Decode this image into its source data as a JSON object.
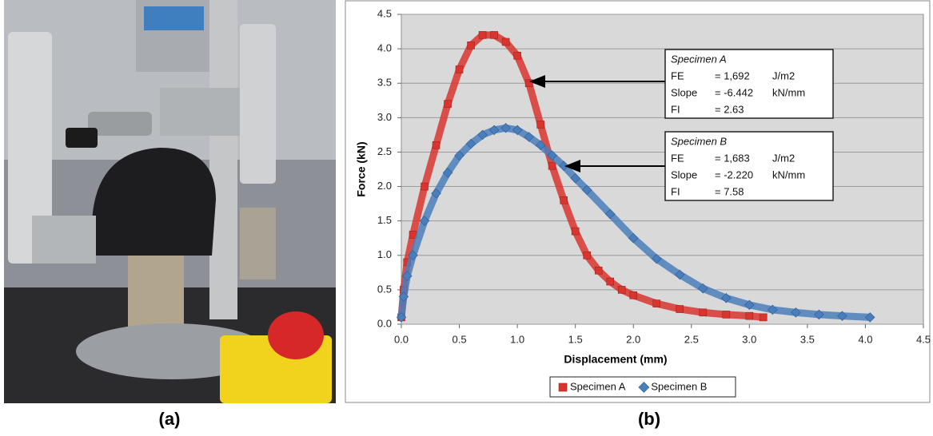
{
  "panel_labels": [
    "(a)",
    "(b)"
  ],
  "chart_data": {
    "type": "scatter",
    "x_label": "Displacement (mm)",
    "y_label": "Force (kN)",
    "xlim": [
      0,
      4.5
    ],
    "ylim": [
      0,
      4.5
    ],
    "xticks": [
      {
        "value": 0,
        "label": "0.0"
      },
      0.5,
      {
        "value": 1,
        "label": "1.0"
      },
      1.5,
      {
        "value": 2,
        "label": "2.0"
      },
      2.5,
      {
        "value": 3,
        "label": "3.0"
      },
      3.5,
      {
        "value": 4,
        "label": "4.0"
      },
      4.5
    ],
    "yticks": [
      {
        "value": 0,
        "label": "0.0"
      },
      0.5,
      {
        "value": 1,
        "label": "1.0"
      },
      1.5,
      {
        "value": 2,
        "label": "2.0"
      },
      2.5,
      {
        "value": 3,
        "label": "3.0"
      },
      3.5,
      {
        "value": 4,
        "label": "4.0"
      },
      4.5
    ],
    "grid": true,
    "legend": "bottom",
    "series": [
      {
        "name": "Specimen A",
        "color": "#d8352f",
        "marker": "square",
        "x": [
          0,
          0.02,
          0.05,
          0.1,
          0.2,
          0.3,
          0.4,
          0.5,
          0.6,
          0.7,
          0.8,
          0.9,
          1.0,
          1.1,
          1.2,
          1.3,
          1.4,
          1.5,
          1.6,
          1.7,
          1.8,
          1.9,
          2.0,
          2.2,
          2.4,
          2.6,
          2.8,
          3.0,
          3.12
        ],
        "values": [
          0.1,
          0.5,
          0.9,
          1.3,
          2.0,
          2.6,
          3.2,
          3.7,
          4.05,
          4.2,
          4.2,
          4.1,
          3.9,
          3.5,
          2.9,
          2.3,
          1.8,
          1.35,
          1.0,
          0.78,
          0.62,
          0.5,
          0.42,
          0.3,
          0.22,
          0.17,
          0.14,
          0.12,
          0.1
        ]
      },
      {
        "name": "Specimen B",
        "color": "#4a7ebb",
        "marker": "diamond",
        "x": [
          0,
          0.02,
          0.05,
          0.1,
          0.2,
          0.3,
          0.4,
          0.5,
          0.6,
          0.7,
          0.8,
          0.9,
          1.0,
          1.1,
          1.2,
          1.3,
          1.4,
          1.5,
          1.6,
          1.8,
          2.0,
          2.2,
          2.4,
          2.6,
          2.8,
          3.0,
          3.2,
          3.4,
          3.6,
          3.8,
          4.04
        ],
        "values": [
          0.1,
          0.4,
          0.7,
          1.0,
          1.5,
          1.9,
          2.2,
          2.45,
          2.62,
          2.75,
          2.82,
          2.85,
          2.82,
          2.72,
          2.6,
          2.45,
          2.3,
          2.12,
          1.95,
          1.6,
          1.25,
          0.95,
          0.72,
          0.52,
          0.38,
          0.28,
          0.21,
          0.17,
          0.14,
          0.12,
          0.1
        ]
      }
    ],
    "annotations": [
      {
        "title": "Specimen A",
        "rows": [
          [
            "FE",
            "= 1,692",
            "J/m2"
          ],
          [
            "Slope",
            "= -6.442",
            "kN/mm"
          ],
          [
            "FI",
            "= 2.63"
          ]
        ]
      },
      {
        "title": "Specimen B",
        "rows": [
          [
            "FE",
            "= 1,683",
            "J/m2"
          ],
          [
            "Slope",
            "= -2.220",
            "kN/mm"
          ],
          [
            "FI",
            "= 7.58"
          ]
        ]
      }
    ]
  }
}
